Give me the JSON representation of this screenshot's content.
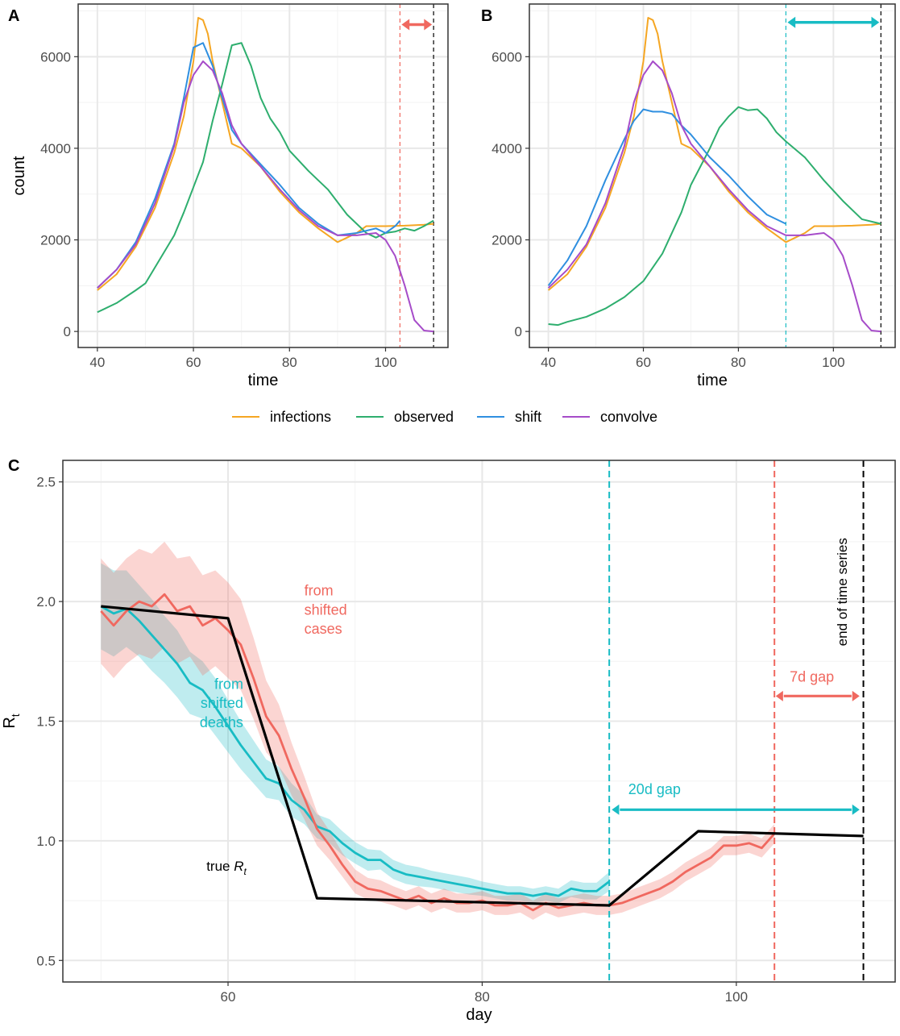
{
  "colors": {
    "infections": "#F5A623",
    "observed": "#2EAE6E",
    "shift": "#2F8FE0",
    "convolve": "#A64CC9",
    "cases": "#F0685F",
    "deaths": "#18BCC4",
    "true": "#000000",
    "grid_major": "#e8e8e8",
    "grid_minor": "#f3f3f3"
  },
  "legend": {
    "items": [
      {
        "label": "infections",
        "color_key": "infections"
      },
      {
        "label": "observed",
        "color_key": "observed"
      },
      {
        "label": "shift",
        "color_key": "shift"
      },
      {
        "label": "convolve",
        "color_key": "convolve"
      }
    ]
  },
  "chart_data": [
    {
      "panel": "A",
      "type": "line",
      "xlabel": "time",
      "ylabel": "count",
      "xlim": [
        36,
        113
      ],
      "ylim": [
        -350,
        7150
      ],
      "xticks": [
        40,
        60,
        80,
        100
      ],
      "yticks": [
        0,
        2000,
        4000,
        6000
      ],
      "grid": true,
      "vlines": [
        {
          "x": 103,
          "color_key": "cases",
          "style": "dashed"
        },
        {
          "x": 110,
          "color_key": "true",
          "style": "dashed"
        }
      ],
      "arrow": {
        "from": 103,
        "to": 110,
        "y": 6700,
        "color_key": "cases"
      },
      "series": [
        {
          "name": "infections",
          "color_key": "infections",
          "x": [
            40,
            44,
            48,
            52,
            56,
            58,
            60,
            61,
            62,
            63,
            64,
            66,
            68,
            70,
            74,
            78,
            82,
            86,
            90,
            92,
            94,
            96,
            98,
            100,
            104,
            108,
            110
          ],
          "y": [
            900,
            1250,
            1850,
            2700,
            3900,
            4700,
            5900,
            6850,
            6800,
            6500,
            5900,
            5000,
            4100,
            4000,
            3600,
            3050,
            2600,
            2250,
            1950,
            2050,
            2150,
            2300,
            2300,
            2300,
            2310,
            2330,
            2350
          ]
        },
        {
          "name": "observed",
          "color_key": "observed",
          "x": [
            40,
            44,
            48,
            50,
            52,
            54,
            56,
            58,
            60,
            62,
            64,
            66,
            68,
            70,
            72,
            74,
            76,
            78,
            80,
            84,
            88,
            92,
            96,
            98,
            100,
            102,
            104,
            106,
            108,
            110
          ],
          "y": [
            420,
            620,
            900,
            1050,
            1400,
            1750,
            2100,
            2600,
            3150,
            3700,
            4600,
            5400,
            6250,
            6300,
            5800,
            5100,
            4650,
            4350,
            3950,
            3500,
            3100,
            2550,
            2150,
            2050,
            2150,
            2180,
            2250,
            2200,
            2300,
            2420
          ]
        },
        {
          "name": "shift",
          "color_key": "shift",
          "x": [
            40,
            44,
            48,
            52,
            56,
            58,
            60,
            62,
            64,
            66,
            68,
            70,
            74,
            78,
            82,
            86,
            90,
            94,
            98,
            100,
            102,
            103
          ],
          "y": [
            950,
            1350,
            1950,
            2900,
            4100,
            5100,
            6200,
            6300,
            5800,
            5100,
            4400,
            4100,
            3650,
            3200,
            2700,
            2350,
            2100,
            2150,
            2250,
            2150,
            2300,
            2420
          ]
        },
        {
          "name": "convolve",
          "color_key": "convolve",
          "x": [
            40,
            44,
            48,
            52,
            56,
            58,
            60,
            62,
            64,
            66,
            68,
            70,
            74,
            78,
            82,
            86,
            90,
            94,
            98,
            100,
            102,
            104,
            106,
            108,
            110
          ],
          "y": [
            950,
            1350,
            1900,
            2800,
            4050,
            5000,
            5600,
            5900,
            5700,
            5200,
            4500,
            4100,
            3600,
            3100,
            2650,
            2300,
            2100,
            2100,
            2150,
            2000,
            1650,
            1000,
            250,
            20,
            0
          ]
        }
      ]
    },
    {
      "panel": "B",
      "type": "line",
      "xlabel": "time",
      "ylabel": "",
      "xlim": [
        36,
        113
      ],
      "ylim": [
        -350,
        7150
      ],
      "xticks": [
        40,
        60,
        80,
        100
      ],
      "yticks": [
        0,
        2000,
        4000,
        6000
      ],
      "grid": true,
      "vlines": [
        {
          "x": 90,
          "color_key": "deaths",
          "style": "dashed"
        },
        {
          "x": 110,
          "color_key": "true",
          "style": "dashed"
        }
      ],
      "arrow": {
        "from": 90,
        "to": 110,
        "y": 6750,
        "color_key": "deaths"
      },
      "series": [
        {
          "name": "infections",
          "color_key": "infections",
          "x": [
            40,
            44,
            48,
            52,
            56,
            58,
            60,
            61,
            62,
            63,
            64,
            66,
            68,
            70,
            74,
            78,
            82,
            86,
            90,
            92,
            94,
            96,
            98,
            100,
            104,
            108,
            110
          ],
          "y": [
            900,
            1250,
            1850,
            2700,
            3900,
            4700,
            5900,
            6850,
            6800,
            6500,
            5900,
            5000,
            4100,
            4000,
            3600,
            3050,
            2600,
            2250,
            1950,
            2050,
            2150,
            2300,
            2300,
            2300,
            2310,
            2330,
            2350
          ]
        },
        {
          "name": "observed",
          "color_key": "observed",
          "x": [
            40,
            42,
            44,
            48,
            52,
            56,
            60,
            64,
            68,
            70,
            72,
            74,
            76,
            78,
            80,
            82,
            84,
            86,
            88,
            90,
            94,
            98,
            102,
            106,
            110
          ],
          "y": [
            160,
            140,
            210,
            320,
            500,
            750,
            1100,
            1700,
            2600,
            3200,
            3600,
            4000,
            4450,
            4700,
            4900,
            4830,
            4850,
            4650,
            4350,
            4150,
            3800,
            3300,
            2850,
            2450,
            2350
          ]
        },
        {
          "name": "shift",
          "color_key": "shift",
          "x": [
            40,
            44,
            48,
            52,
            56,
            58,
            60,
            62,
            64,
            66,
            68,
            70,
            74,
            78,
            82,
            86,
            90
          ],
          "y": [
            1000,
            1550,
            2300,
            3300,
            4200,
            4600,
            4850,
            4800,
            4800,
            4750,
            4500,
            4300,
            3800,
            3400,
            2950,
            2550,
            2350
          ]
        },
        {
          "name": "convolve",
          "color_key": "convolve",
          "x": [
            40,
            44,
            48,
            52,
            56,
            58,
            60,
            62,
            64,
            66,
            68,
            70,
            74,
            78,
            82,
            86,
            90,
            94,
            98,
            100,
            102,
            104,
            106,
            108,
            110
          ],
          "y": [
            950,
            1350,
            1900,
            2800,
            4050,
            5000,
            5600,
            5900,
            5700,
            5200,
            4500,
            4100,
            3600,
            3100,
            2650,
            2300,
            2100,
            2100,
            2150,
            2000,
            1650,
            1000,
            250,
            20,
            0
          ]
        }
      ]
    },
    {
      "panel": "C",
      "type": "line",
      "xlabel": "day",
      "ylabel": "R",
      "ylabel_sub": "t",
      "xlim": [
        47,
        112.5
      ],
      "ylim": [
        0.41,
        2.59
      ],
      "xticks": [
        60,
        80,
        100
      ],
      "yticks": [
        0.5,
        1.0,
        1.5,
        2.0,
        2.5
      ],
      "ytick_labels": [
        "0.5",
        "1.0",
        "1.5",
        "2.0",
        "2.5"
      ],
      "grid": true,
      "vlines": [
        {
          "x": 90,
          "color_key": "deaths",
          "style": "dashed"
        },
        {
          "x": 103,
          "color_key": "cases",
          "style": "dashed"
        },
        {
          "x": 110,
          "color_key": "true",
          "style": "dashed"
        }
      ],
      "series": [
        {
          "name": "from shifted deaths",
          "color_key": "deaths",
          "x": [
            50,
            51,
            52,
            53,
            54,
            55,
            56,
            57,
            58,
            59,
            60,
            61,
            62,
            63,
            64,
            65,
            66,
            67,
            68,
            69,
            70,
            71,
            72,
            73,
            74,
            75,
            76,
            77,
            78,
            79,
            80,
            81,
            82,
            83,
            84,
            85,
            86,
            87,
            88,
            89,
            90
          ],
          "y": [
            1.98,
            1.95,
            1.97,
            1.92,
            1.86,
            1.8,
            1.74,
            1.66,
            1.63,
            1.56,
            1.48,
            1.4,
            1.33,
            1.26,
            1.24,
            1.17,
            1.13,
            1.06,
            1.04,
            0.99,
            0.95,
            0.92,
            0.92,
            0.88,
            0.86,
            0.85,
            0.84,
            0.83,
            0.82,
            0.81,
            0.8,
            0.79,
            0.78,
            0.78,
            0.77,
            0.78,
            0.77,
            0.8,
            0.79,
            0.79,
            0.83
          ],
          "band": [
            0.18,
            0.18,
            0.16,
            0.15,
            0.15,
            0.14,
            0.14,
            0.13,
            0.12,
            0.12,
            0.11,
            0.1,
            0.09,
            0.08,
            0.07,
            0.07,
            0.06,
            0.05,
            0.05,
            0.05,
            0.045,
            0.045,
            0.04,
            0.04,
            0.04,
            0.04,
            0.035,
            0.035,
            0.035,
            0.035,
            0.03,
            0.03,
            0.03,
            0.03,
            0.03,
            0.03,
            0.03,
            0.035,
            0.035,
            0.035,
            0.04
          ]
        },
        {
          "name": "from shifted cases",
          "color_key": "cases",
          "x": [
            50,
            51,
            52,
            53,
            54,
            55,
            56,
            57,
            58,
            59,
            60,
            61,
            62,
            63,
            64,
            65,
            66,
            67,
            68,
            69,
            70,
            71,
            72,
            73,
            74,
            75,
            76,
            77,
            78,
            79,
            80,
            81,
            82,
            83,
            84,
            85,
            86,
            87,
            88,
            89,
            90,
            91,
            92,
            93,
            94,
            95,
            96,
            97,
            98,
            99,
            100,
            101,
            102,
            103
          ],
          "y": [
            1.96,
            1.9,
            1.96,
            2.0,
            1.98,
            2.03,
            1.96,
            1.98,
            1.9,
            1.93,
            1.88,
            1.82,
            1.68,
            1.52,
            1.44,
            1.3,
            1.18,
            1.05,
            0.98,
            0.9,
            0.83,
            0.8,
            0.79,
            0.77,
            0.75,
            0.77,
            0.74,
            0.76,
            0.74,
            0.74,
            0.75,
            0.73,
            0.73,
            0.74,
            0.71,
            0.74,
            0.72,
            0.73,
            0.74,
            0.73,
            0.73,
            0.74,
            0.76,
            0.78,
            0.8,
            0.83,
            0.87,
            0.9,
            0.93,
            0.98,
            0.98,
            0.99,
            0.97,
            1.03
          ],
          "band": [
            0.22,
            0.22,
            0.22,
            0.22,
            0.22,
            0.22,
            0.22,
            0.21,
            0.21,
            0.2,
            0.2,
            0.19,
            0.17,
            0.15,
            0.13,
            0.11,
            0.09,
            0.07,
            0.06,
            0.05,
            0.05,
            0.045,
            0.045,
            0.04,
            0.04,
            0.04,
            0.04,
            0.04,
            0.04,
            0.04,
            0.04,
            0.04,
            0.04,
            0.04,
            0.04,
            0.04,
            0.04,
            0.04,
            0.04,
            0.04,
            0.04,
            0.04,
            0.04,
            0.04,
            0.04,
            0.04,
            0.04,
            0.04,
            0.04,
            0.04,
            0.04,
            0.04,
            0.04,
            0.04
          ]
        },
        {
          "name": "true R",
          "color_key": "true",
          "x": [
            50,
            60,
            67,
            90,
            97,
            110
          ],
          "y": [
            1.98,
            1.93,
            0.76,
            0.73,
            1.04,
            1.02
          ]
        }
      ],
      "annotations": [
        {
          "text": "from",
          "x": 66,
          "y": 2.025,
          "color_key": "cases"
        },
        {
          "text": "shifted",
          "x": 66,
          "y": 1.945,
          "color_key": "cases"
        },
        {
          "text": "cases",
          "x": 66,
          "y": 1.865,
          "color_key": "cases"
        },
        {
          "text": "from",
          "x": 61.2,
          "y": 1.635,
          "color_key": "deaths",
          "anchor": "end"
        },
        {
          "text": "shifted",
          "x": 61.2,
          "y": 1.555,
          "color_key": "deaths",
          "anchor": "end"
        },
        {
          "text": "deaths",
          "x": 61.2,
          "y": 1.475,
          "color_key": "deaths",
          "anchor": "end"
        },
        {
          "text": "20d gap",
          "x": 91.5,
          "y": 1.195,
          "color_key": "deaths"
        },
        {
          "text": "7d gap",
          "x": 104.2,
          "y": 1.665,
          "color_key": "cases"
        }
      ],
      "true_label": {
        "text": "true ",
        "italic_text": "R",
        "sub": "t",
        "x": 58.3,
        "y": 0.875
      },
      "vertical_label": {
        "text": "end of time series",
        "x": 108.7,
        "y": 2.04
      },
      "gap_arrows": [
        {
          "from": 90.2,
          "to": 109.7,
          "y": 1.13,
          "color_key": "deaths"
        },
        {
          "from": 103.1,
          "to": 109.7,
          "y": 1.605,
          "color_key": "cases"
        }
      ]
    }
  ]
}
